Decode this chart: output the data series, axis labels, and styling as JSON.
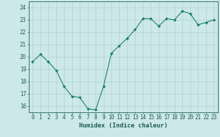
{
  "x": [
    0,
    1,
    2,
    3,
    4,
    5,
    6,
    7,
    8,
    9,
    10,
    11,
    12,
    13,
    14,
    15,
    16,
    17,
    18,
    19,
    20,
    21,
    22,
    23
  ],
  "y": [
    19.6,
    20.2,
    19.6,
    18.9,
    17.6,
    16.8,
    16.7,
    15.8,
    15.7,
    17.6,
    20.3,
    20.9,
    21.5,
    22.2,
    23.1,
    23.1,
    22.5,
    23.1,
    23.0,
    23.7,
    23.5,
    22.6,
    22.8,
    23.0
  ],
  "line_color": "#1a7a6e",
  "marker": "D",
  "marker_size": 2.0,
  "bg_color": "#cce8e8",
  "grid_color": "#b0d0d0",
  "xlabel": "Humidex (Indice chaleur)",
  "ylim": [
    15.5,
    24.5
  ],
  "xlim": [
    -0.5,
    23.5
  ],
  "yticks": [
    16,
    17,
    18,
    19,
    20,
    21,
    22,
    23,
    24
  ],
  "xticks": [
    0,
    1,
    2,
    3,
    4,
    5,
    6,
    7,
    8,
    9,
    10,
    11,
    12,
    13,
    14,
    15,
    16,
    17,
    18,
    19,
    20,
    21,
    22,
    23
  ],
  "axis_color": "#1a5c52",
  "label_fontsize": 6.5,
  "tick_fontsize": 5.5
}
